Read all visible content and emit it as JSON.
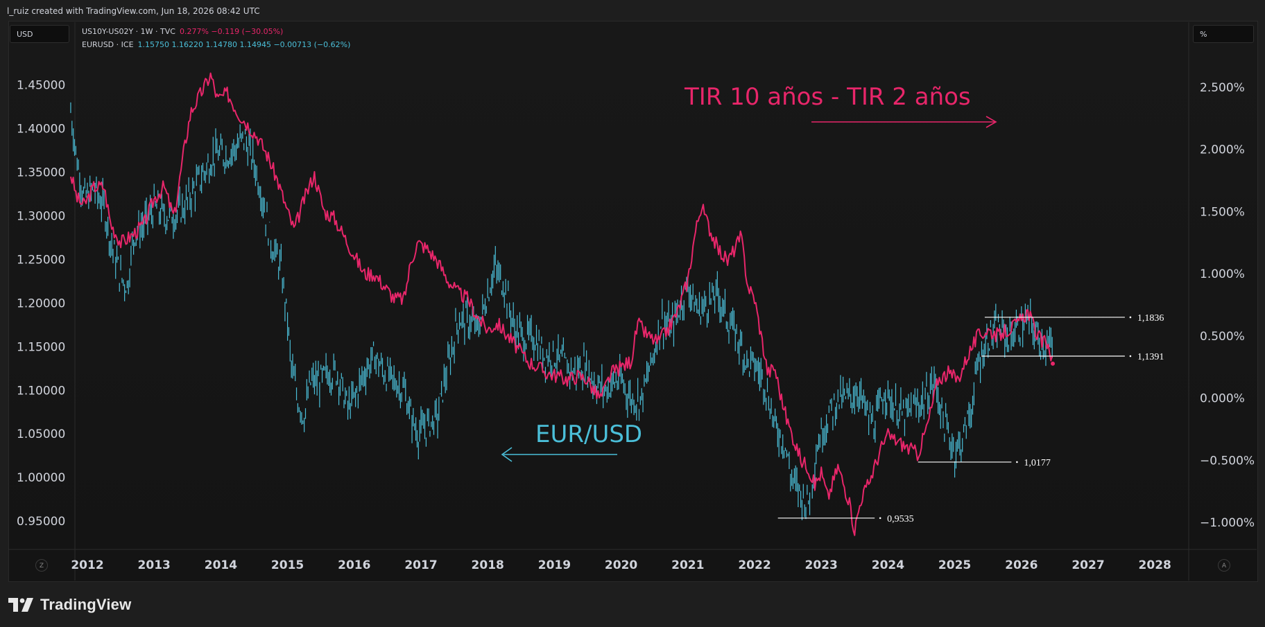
{
  "header": {
    "attribution": "l_ruiz created with TradingView.com, Jun 18, 2026 08:42 UTC"
  },
  "left_unit": "USD",
  "right_unit": "%",
  "legend": {
    "line1": {
      "symbol": "US10Y-US02Y · 1W · TVC",
      "values": "0.277%  −0.119 (−30.05%)"
    },
    "line2": {
      "symbol": "EURUSD · ICE",
      "values": "1.15750  1.16220  1.14780  1.14945  −0.00713 (−0.62%)"
    }
  },
  "annotations": {
    "spread_label": "TIR 10 años - TIR 2 años",
    "eurusd_label": "EUR/USD",
    "levels": [
      {
        "label": "1,1836",
        "value": 1.1836
      },
      {
        "label": "1,1391",
        "value": 1.1391
      },
      {
        "label": "1,0177",
        "value": 1.0177
      },
      {
        "label": "0,9535",
        "value": 0.9535
      }
    ]
  },
  "footer": {
    "brand": "TradingView",
    "z_button": "Z",
    "a_button": "A"
  },
  "colors": {
    "eurusd": "#4bbfd9",
    "spread": "#e8266a",
    "background": "#161616",
    "text": "#d1d4dc"
  },
  "chart_data": {
    "type": "line",
    "x_tick_labels": [
      "2012",
      "2013",
      "2014",
      "2015",
      "2016",
      "2017",
      "2018",
      "2019",
      "2020",
      "2021",
      "2022",
      "2023",
      "2024",
      "2025",
      "2026",
      "2027",
      "2028"
    ],
    "left_axis": {
      "unit": "USD",
      "tick_labels": [
        "1.45000",
        "1.40000",
        "1.35000",
        "1.30000",
        "1.25000",
        "1.20000",
        "1.15000",
        "1.10000",
        "1.05000",
        "1.00000",
        "0.95000"
      ],
      "range": [
        0.92,
        1.49
      ]
    },
    "right_axis": {
      "unit": "%",
      "tick_labels": [
        "2.500%",
        "2.000%",
        "1.500%",
        "1.000%",
        "0.500%",
        "0.000%",
        "−0.500%",
        "−1.000%"
      ],
      "range": [
        -1.2,
        2.8
      ]
    },
    "series": [
      {
        "name": "EURUSD · ICE",
        "axis": "left",
        "style": "ohlc-bars",
        "points": [
          [
            2011.75,
            1.42
          ],
          [
            2011.85,
            1.36
          ],
          [
            2011.95,
            1.32
          ],
          [
            2012.1,
            1.33
          ],
          [
            2012.25,
            1.31
          ],
          [
            2012.35,
            1.27
          ],
          [
            2012.5,
            1.23
          ],
          [
            2012.6,
            1.22
          ],
          [
            2012.7,
            1.28
          ],
          [
            2012.85,
            1.29
          ],
          [
            2013.0,
            1.31
          ],
          [
            2013.15,
            1.3
          ],
          [
            2013.3,
            1.3
          ],
          [
            2013.45,
            1.31
          ],
          [
            2013.6,
            1.33
          ],
          [
            2013.75,
            1.35
          ],
          [
            2013.9,
            1.37
          ],
          [
            2014.1,
            1.37
          ],
          [
            2014.25,
            1.38
          ],
          [
            2014.35,
            1.39
          ],
          [
            2014.5,
            1.36
          ],
          [
            2014.6,
            1.33
          ],
          [
            2014.75,
            1.27
          ],
          [
            2014.9,
            1.24
          ],
          [
            2015.0,
            1.18
          ],
          [
            2015.05,
            1.13
          ],
          [
            2015.15,
            1.09
          ],
          [
            2015.25,
            1.07
          ],
          [
            2015.35,
            1.11
          ],
          [
            2015.5,
            1.11
          ],
          [
            2015.6,
            1.12
          ],
          [
            2015.75,
            1.12
          ],
          [
            2015.9,
            1.08
          ],
          [
            2016.0,
            1.09
          ],
          [
            2016.15,
            1.12
          ],
          [
            2016.3,
            1.14
          ],
          [
            2016.45,
            1.12
          ],
          [
            2016.6,
            1.11
          ],
          [
            2016.75,
            1.1
          ],
          [
            2016.85,
            1.07
          ],
          [
            2016.95,
            1.05
          ],
          [
            2017.1,
            1.06
          ],
          [
            2017.25,
            1.07
          ],
          [
            2017.35,
            1.11
          ],
          [
            2017.45,
            1.14
          ],
          [
            2017.55,
            1.18
          ],
          [
            2017.7,
            1.18
          ],
          [
            2017.85,
            1.17
          ],
          [
            2018.0,
            1.21
          ],
          [
            2018.1,
            1.24
          ],
          [
            2018.25,
            1.22
          ],
          [
            2018.4,
            1.17
          ],
          [
            2018.55,
            1.16
          ],
          [
            2018.7,
            1.16
          ],
          [
            2018.85,
            1.14
          ],
          [
            2019.0,
            1.14
          ],
          [
            2019.15,
            1.13
          ],
          [
            2019.3,
            1.12
          ],
          [
            2019.45,
            1.13
          ],
          [
            2019.6,
            1.11
          ],
          [
            2019.75,
            1.1
          ],
          [
            2019.9,
            1.11
          ],
          [
            2020.0,
            1.11
          ],
          [
            2020.15,
            1.09
          ],
          [
            2020.3,
            1.09
          ],
          [
            2020.45,
            1.13
          ],
          [
            2020.6,
            1.18
          ],
          [
            2020.75,
            1.17
          ],
          [
            2020.9,
            1.2
          ],
          [
            2021.0,
            1.22
          ],
          [
            2021.15,
            1.19
          ],
          [
            2021.3,
            1.2
          ],
          [
            2021.45,
            1.21
          ],
          [
            2021.6,
            1.18
          ],
          [
            2021.75,
            1.16
          ],
          [
            2021.9,
            1.13
          ],
          [
            2022.0,
            1.13
          ],
          [
            2022.15,
            1.11
          ],
          [
            2022.3,
            1.06
          ],
          [
            2022.45,
            1.04
          ],
          [
            2022.55,
            1.0
          ],
          [
            2022.7,
            0.98
          ],
          [
            2022.8,
            0.97
          ],
          [
            2022.95,
            1.04
          ],
          [
            2023.1,
            1.07
          ],
          [
            2023.25,
            1.09
          ],
          [
            2023.4,
            1.09
          ],
          [
            2023.55,
            1.1
          ],
          [
            2023.7,
            1.07
          ],
          [
            2023.8,
            1.06
          ],
          [
            2023.95,
            1.1
          ],
          [
            2024.1,
            1.08
          ],
          [
            2024.25,
            1.07
          ],
          [
            2024.4,
            1.08
          ],
          [
            2024.55,
            1.09
          ],
          [
            2024.7,
            1.11
          ],
          [
            2024.85,
            1.06
          ],
          [
            2025.0,
            1.03
          ],
          [
            2025.1,
            1.04
          ],
          [
            2025.25,
            1.08
          ],
          [
            2025.35,
            1.13
          ],
          [
            2025.5,
            1.16
          ],
          [
            2025.65,
            1.17
          ],
          [
            2025.8,
            1.16
          ],
          [
            2025.95,
            1.17
          ],
          [
            2026.1,
            1.18
          ],
          [
            2026.25,
            1.16
          ],
          [
            2026.4,
            1.15
          ],
          [
            2026.47,
            1.149
          ]
        ]
      },
      {
        "name": "US10Y-US02Y · 1W · TVC",
        "axis": "right",
        "style": "line",
        "points": [
          [
            2011.75,
            1.8
          ],
          [
            2011.85,
            1.6
          ],
          [
            2011.95,
            1.55
          ],
          [
            2012.1,
            1.7
          ],
          [
            2012.25,
            1.7
          ],
          [
            2012.35,
            1.4
          ],
          [
            2012.5,
            1.25
          ],
          [
            2012.65,
            1.3
          ],
          [
            2012.85,
            1.4
          ],
          [
            2013.0,
            1.6
          ],
          [
            2013.15,
            1.7
          ],
          [
            2013.3,
            1.45
          ],
          [
            2013.45,
            2.0
          ],
          [
            2013.55,
            2.3
          ],
          [
            2013.7,
            2.45
          ],
          [
            2013.85,
            2.6
          ],
          [
            2013.95,
            2.4
          ],
          [
            2014.1,
            2.45
          ],
          [
            2014.25,
            2.3
          ],
          [
            2014.4,
            2.2
          ],
          [
            2014.55,
            2.1
          ],
          [
            2014.7,
            1.95
          ],
          [
            2014.85,
            1.75
          ],
          [
            2015.0,
            1.5
          ],
          [
            2015.1,
            1.35
          ],
          [
            2015.25,
            1.6
          ],
          [
            2015.4,
            1.8
          ],
          [
            2015.55,
            1.5
          ],
          [
            2015.7,
            1.45
          ],
          [
            2015.85,
            1.3
          ],
          [
            2016.0,
            1.15
          ],
          [
            2016.15,
            1.0
          ],
          [
            2016.3,
            1.0
          ],
          [
            2016.45,
            0.9
          ],
          [
            2016.6,
            0.8
          ],
          [
            2016.75,
            0.8
          ],
          [
            2016.85,
            1.1
          ],
          [
            2016.95,
            1.25
          ],
          [
            2017.1,
            1.2
          ],
          [
            2017.25,
            1.1
          ],
          [
            2017.4,
            0.95
          ],
          [
            2017.55,
            0.85
          ],
          [
            2017.7,
            0.8
          ],
          [
            2017.85,
            0.65
          ],
          [
            2018.0,
            0.55
          ],
          [
            2018.15,
            0.6
          ],
          [
            2018.3,
            0.5
          ],
          [
            2018.45,
            0.4
          ],
          [
            2018.6,
            0.3
          ],
          [
            2018.75,
            0.25
          ],
          [
            2018.9,
            0.2
          ],
          [
            2019.05,
            0.18
          ],
          [
            2019.2,
            0.15
          ],
          [
            2019.35,
            0.18
          ],
          [
            2019.5,
            0.15
          ],
          [
            2019.6,
            0.05
          ],
          [
            2019.7,
            0.0
          ],
          [
            2019.85,
            0.2
          ],
          [
            2020.0,
            0.25
          ],
          [
            2020.15,
            0.3
          ],
          [
            2020.25,
            0.6
          ],
          [
            2020.4,
            0.5
          ],
          [
            2020.55,
            0.45
          ],
          [
            2020.7,
            0.55
          ],
          [
            2020.85,
            0.7
          ],
          [
            2021.0,
            0.95
          ],
          [
            2021.1,
            1.3
          ],
          [
            2021.2,
            1.55
          ],
          [
            2021.3,
            1.4
          ],
          [
            2021.45,
            1.2
          ],
          [
            2021.6,
            1.1
          ],
          [
            2021.7,
            1.2
          ],
          [
            2021.8,
            1.3
          ],
          [
            2021.9,
            0.9
          ],
          [
            2022.0,
            0.8
          ],
          [
            2022.1,
            0.5
          ],
          [
            2022.2,
            0.2
          ],
          [
            2022.3,
            0.25
          ],
          [
            2022.4,
            0.0
          ],
          [
            2022.5,
            -0.2
          ],
          [
            2022.6,
            -0.35
          ],
          [
            2022.7,
            -0.5
          ],
          [
            2022.8,
            -0.55
          ],
          [
            2022.9,
            -0.7
          ],
          [
            2023.0,
            -0.6
          ],
          [
            2023.1,
            -0.8
          ],
          [
            2023.25,
            -0.55
          ],
          [
            2023.4,
            -0.8
          ],
          [
            2023.5,
            -1.06
          ],
          [
            2023.6,
            -0.8
          ],
          [
            2023.7,
            -0.7
          ],
          [
            2023.8,
            -0.55
          ],
          [
            2023.9,
            -0.4
          ],
          [
            2024.0,
            -0.3
          ],
          [
            2024.15,
            -0.35
          ],
          [
            2024.3,
            -0.4
          ],
          [
            2024.45,
            -0.45
          ],
          [
            2024.6,
            -0.2
          ],
          [
            2024.75,
            0.15
          ],
          [
            2024.9,
            0.2
          ],
          [
            2025.05,
            0.15
          ],
          [
            2025.2,
            0.35
          ],
          [
            2025.35,
            0.5
          ],
          [
            2025.5,
            0.55
          ],
          [
            2025.65,
            0.5
          ],
          [
            2025.8,
            0.55
          ],
          [
            2025.95,
            0.6
          ],
          [
            2026.1,
            0.7
          ],
          [
            2026.2,
            0.55
          ],
          [
            2026.3,
            0.45
          ],
          [
            2026.4,
            0.45
          ],
          [
            2026.47,
            0.277
          ]
        ]
      }
    ]
  }
}
